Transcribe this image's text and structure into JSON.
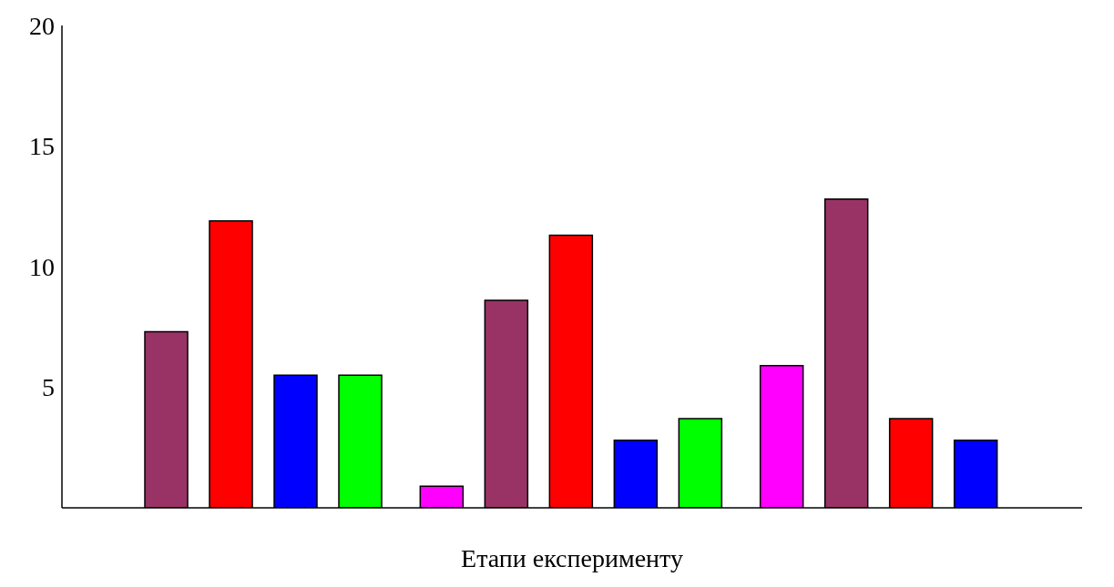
{
  "chart_data": {
    "type": "bar",
    "xlabel": "Етапи експерименту",
    "categories": [
      null,
      null,
      null
    ],
    "series": [
      {
        "color": "#ff00ff",
        "values": [
          null,
          0.9,
          5.9
        ]
      },
      {
        "color": "#993366",
        "values": [
          7.3,
          8.6,
          12.8
        ]
      },
      {
        "color": "#ff0000",
        "values": [
          11.9,
          11.3,
          3.7
        ]
      },
      {
        "color": "#0000ff",
        "values": [
          5.5,
          2.8,
          2.8
        ]
      },
      {
        "color": "#00ff00",
        "values": [
          5.5,
          3.7,
          null
        ]
      }
    ],
    "ylim": [
      0,
      20
    ],
    "yticks": [
      5,
      10,
      15,
      20
    ],
    "grid": false,
    "legend": false,
    "tick_labels": "y"
  }
}
